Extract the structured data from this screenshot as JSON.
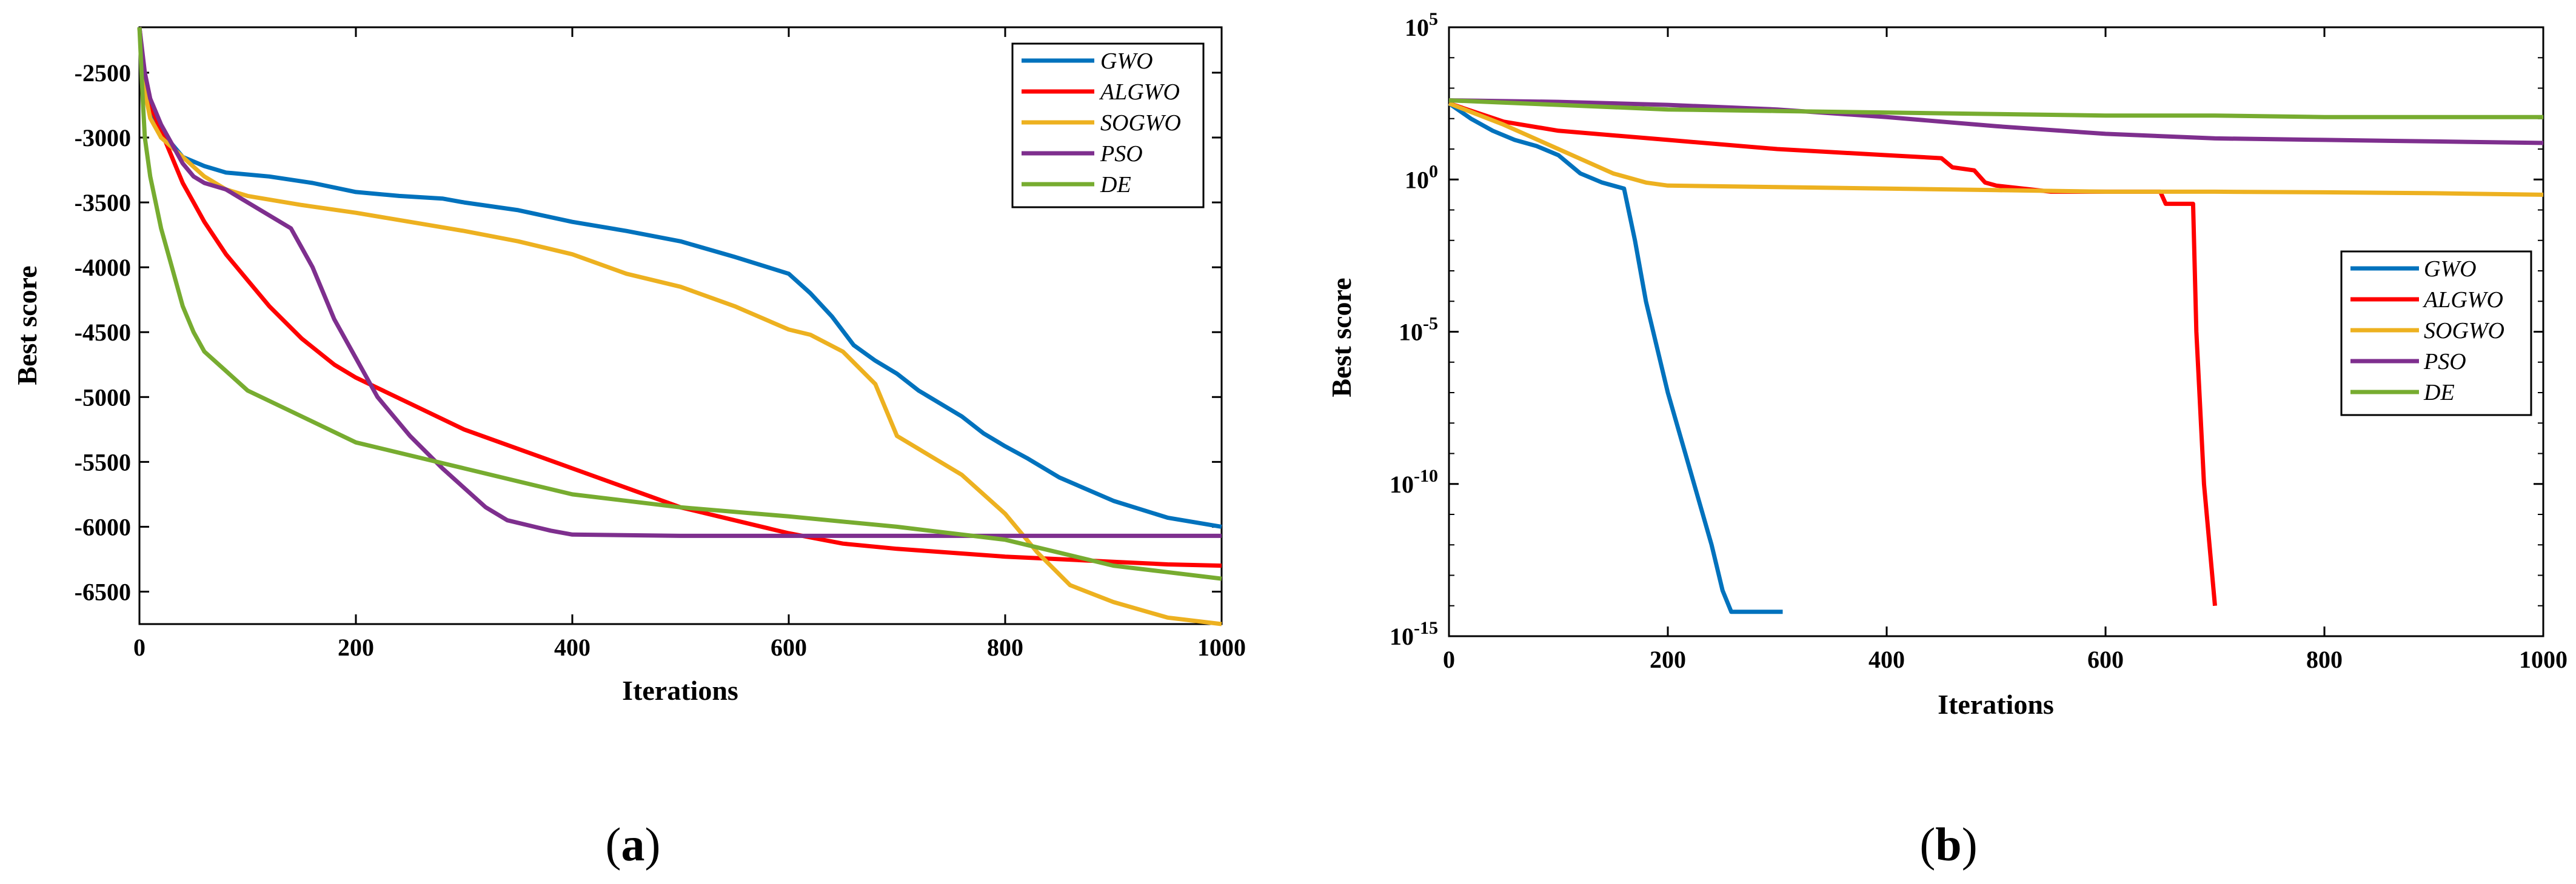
{
  "chart_data": [
    {
      "type": "line",
      "panel_label": "a",
      "title": "",
      "xlabel": "Iterations",
      "ylabel": "Best score",
      "xlim": [
        0,
        1000
      ],
      "ylim": [
        -6750,
        -2150
      ],
      "xticks": [
        0,
        200,
        400,
        600,
        800,
        1000
      ],
      "xtick_labels": [
        "0",
        "200",
        "400",
        "600",
        "800",
        "1000"
      ],
      "yticks": [
        -2500,
        -3000,
        -3500,
        -4000,
        -4500,
        -5000,
        -5500,
        -6000,
        -6500
      ],
      "ytick_labels": [
        "-2500",
        "-3000",
        "-3500",
        "-4000",
        "-4500",
        "-5000",
        "-5500",
        "-6000",
        "-6500"
      ],
      "legend_position": "top-right",
      "series": [
        {
          "name": "GWO",
          "color": "#0072BD",
          "x": [
            0,
            5,
            10,
            20,
            30,
            40,
            60,
            80,
            120,
            160,
            200,
            240,
            280,
            300,
            350,
            400,
            450,
            500,
            550,
            600,
            620,
            640,
            660,
            680,
            700,
            720,
            740,
            760,
            780,
            800,
            820,
            850,
            900,
            950,
            1000
          ],
          "y": [
            -2150,
            -2600,
            -2800,
            -3000,
            -3050,
            -3150,
            -3220,
            -3270,
            -3300,
            -3350,
            -3420,
            -3450,
            -3470,
            -3500,
            -3560,
            -3650,
            -3720,
            -3800,
            -3920,
            -4050,
            -4200,
            -4380,
            -4600,
            -4720,
            -4820,
            -4950,
            -5050,
            -5150,
            -5280,
            -5380,
            -5470,
            -5620,
            -5800,
            -5930,
            -6000
          ]
        },
        {
          "name": "ALGWO",
          "color": "#FF0000",
          "x": [
            0,
            5,
            10,
            20,
            30,
            40,
            50,
            60,
            80,
            100,
            120,
            150,
            180,
            200,
            250,
            300,
            350,
            400,
            450,
            500,
            550,
            600,
            650,
            700,
            750,
            800,
            850,
            900,
            950,
            1000
          ],
          "y": [
            -2150,
            -2550,
            -2750,
            -2950,
            -3150,
            -3350,
            -3500,
            -3650,
            -3900,
            -4100,
            -4300,
            -4550,
            -4750,
            -4850,
            -5050,
            -5250,
            -5400,
            -5550,
            -5700,
            -5850,
            -5950,
            -6050,
            -6130,
            -6170,
            -6200,
            -6230,
            -6250,
            -6270,
            -6290,
            -6300
          ]
        },
        {
          "name": "SOGWO",
          "color": "#EDB120",
          "x": [
            0,
            5,
            10,
            20,
            40,
            60,
            80,
            100,
            150,
            200,
            250,
            300,
            350,
            400,
            450,
            500,
            550,
            600,
            620,
            650,
            680,
            700,
            720,
            760,
            800,
            830,
            860,
            900,
            950,
            1000
          ],
          "y": [
            -2150,
            -2650,
            -2850,
            -3000,
            -3150,
            -3300,
            -3400,
            -3450,
            -3520,
            -3580,
            -3650,
            -3720,
            -3800,
            -3900,
            -4050,
            -4150,
            -4300,
            -4480,
            -4520,
            -4650,
            -4900,
            -5300,
            -5400,
            -5600,
            -5900,
            -6200,
            -6450,
            -6580,
            -6700,
            -6750
          ]
        },
        {
          "name": "PSO",
          "color": "#7E2F8E",
          "x": [
            0,
            5,
            10,
            20,
            30,
            40,
            50,
            60,
            80,
            100,
            120,
            140,
            150,
            160,
            170,
            180,
            200,
            220,
            250,
            280,
            300,
            320,
            340,
            380,
            400,
            500,
            600,
            700,
            800,
            1000
          ],
          "y": [
            -2150,
            -2500,
            -2700,
            -2900,
            -3050,
            -3200,
            -3300,
            -3350,
            -3400,
            -3500,
            -3600,
            -3700,
            -3850,
            -4000,
            -4200,
            -4400,
            -4700,
            -5000,
            -5300,
            -5550,
            -5700,
            -5850,
            -5950,
            -6030,
            -6060,
            -6070,
            -6070,
            -6070,
            -6070,
            -6070
          ]
        },
        {
          "name": "DE",
          "color": "#77AC30",
          "x": [
            0,
            3,
            5,
            10,
            15,
            20,
            30,
            40,
            50,
            60,
            80,
            100,
            150,
            200,
            250,
            300,
            350,
            400,
            500,
            600,
            700,
            800,
            850,
            900,
            950,
            1000
          ],
          "y": [
            -2150,
            -2700,
            -3000,
            -3300,
            -3500,
            -3700,
            -4000,
            -4300,
            -4500,
            -4650,
            -4800,
            -4950,
            -5150,
            -5350,
            -5450,
            -5550,
            -5650,
            -5750,
            -5850,
            -5920,
            -6000,
            -6100,
            -6200,
            -6300,
            -6350,
            -6400
          ]
        }
      ]
    },
    {
      "type": "line",
      "panel_label": "b",
      "title": "",
      "xlabel": "Iterations",
      "ylabel": "Best score",
      "yscale": "log",
      "xlim": [
        0,
        1000
      ],
      "ylim_log10": [
        -15,
        5
      ],
      "xticks": [
        0,
        200,
        400,
        600,
        800,
        1000
      ],
      "xtick_labels": [
        "0",
        "200",
        "400",
        "600",
        "800",
        "1000"
      ],
      "ytick_exponents": [
        5,
        0,
        -5,
        -10,
        -15
      ],
      "ytick_base": "10",
      "ytick_exp_labels": [
        "5",
        "0",
        "-5",
        "-10",
        "-15"
      ],
      "legend_position": "center-right",
      "series": [
        {
          "name": "GWO",
          "color": "#0072BD",
          "x": [
            0,
            20,
            40,
            60,
            80,
            100,
            120,
            140,
            160,
            170,
            180,
            200,
            220,
            240,
            250,
            258,
            300,
            305
          ],
          "log10_y": [
            2.5,
            2.0,
            1.6,
            1.3,
            1.1,
            0.8,
            0.2,
            -0.1,
            -0.3,
            -2.0,
            -4.0,
            -7.0,
            -9.5,
            -12.0,
            -13.5,
            -14.2,
            -14.2,
            -14.2
          ]
        },
        {
          "name": "ALGWO",
          "color": "#FF0000",
          "x": [
            0,
            50,
            100,
            200,
            300,
            400,
            450,
            460,
            480,
            490,
            500,
            550,
            650,
            655,
            680,
            683,
            690,
            700
          ],
          "log10_y": [
            2.5,
            1.9,
            1.6,
            1.3,
            1.0,
            0.8,
            0.7,
            0.4,
            0.3,
            -0.1,
            -0.2,
            -0.4,
            -0.4,
            -0.8,
            -0.8,
            -5.0,
            -10.0,
            -14.0
          ]
        },
        {
          "name": "SOGWO",
          "color": "#EDB120",
          "x": [
            0,
            50,
            100,
            150,
            180,
            200,
            300,
            400,
            500,
            600,
            700,
            800,
            900,
            1000
          ],
          "log10_y": [
            2.5,
            1.8,
            1.0,
            0.2,
            -0.1,
            -0.2,
            -0.25,
            -0.3,
            -0.35,
            -0.4,
            -0.4,
            -0.42,
            -0.45,
            -0.5
          ]
        },
        {
          "name": "PSO",
          "color": "#7E2F8E",
          "x": [
            0,
            100,
            200,
            300,
            400,
            500,
            600,
            700,
            800,
            900,
            1000
          ],
          "log10_y": [
            2.6,
            2.55,
            2.45,
            2.3,
            2.05,
            1.75,
            1.5,
            1.35,
            1.3,
            1.25,
            1.2
          ]
        },
        {
          "name": "DE",
          "color": "#77AC30",
          "x": [
            0,
            100,
            200,
            300,
            400,
            500,
            600,
            700,
            800,
            900,
            1000
          ],
          "log10_y": [
            2.6,
            2.45,
            2.3,
            2.25,
            2.2,
            2.15,
            2.1,
            2.1,
            2.05,
            2.05,
            2.05
          ]
        }
      ]
    }
  ]
}
